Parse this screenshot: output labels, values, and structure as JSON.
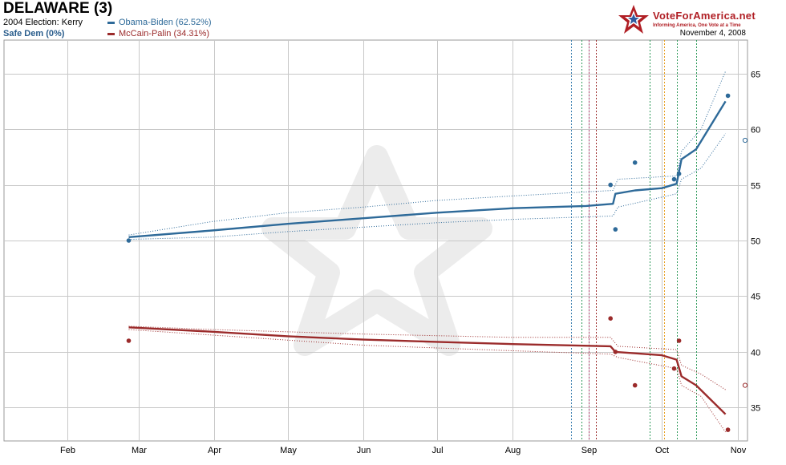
{
  "header": {
    "title": "DELAWARE (3)",
    "previous_election": "2004 Election: Kerry",
    "status": "Safe Dem (0%)",
    "date": "November 4, 2008"
  },
  "brand": {
    "name": "VoteForAmerica.net",
    "tagline": "Informing America, One Vote at a Time"
  },
  "chart_data": {
    "type": "line",
    "title": "",
    "xlabel": "",
    "ylabel": "",
    "x_ticks": [
      "Feb",
      "Mar",
      "Apr",
      "May",
      "Jun",
      "Jul",
      "Aug",
      "Sep",
      "Oct",
      "Nov"
    ],
    "y_ticks": [
      35,
      40,
      45,
      50,
      55,
      60,
      65
    ],
    "xlim": [
      "2008-01-06",
      "2008-11-05"
    ],
    "ylim": [
      32,
      68
    ],
    "grid": true,
    "legend": "top-left",
    "series": [
      {
        "name": "Obama-Biden (62.52%)",
        "color": "#2e6a99",
        "trend": [
          [
            "2008-02-26",
            50.3
          ],
          [
            "2008-03-31",
            50.9
          ],
          [
            "2008-05-01",
            51.5
          ],
          [
            "2008-06-01",
            52.0
          ],
          [
            "2008-07-01",
            52.5
          ],
          [
            "2008-08-01",
            52.9
          ],
          [
            "2008-08-31",
            53.1
          ],
          [
            "2008-09-11",
            53.3
          ],
          [
            "2008-09-12",
            54.2
          ],
          [
            "2008-09-20",
            54.5
          ],
          [
            "2008-10-01",
            54.7
          ],
          [
            "2008-10-07",
            55.1
          ],
          [
            "2008-10-09",
            57.3
          ],
          [
            "2008-10-15",
            58.2
          ],
          [
            "2008-10-27",
            62.5
          ]
        ],
        "band_upper": [
          [
            "2008-02-26",
            50.5
          ],
          [
            "2008-03-31",
            51.7
          ],
          [
            "2008-05-01",
            52.5
          ],
          [
            "2008-06-01",
            53.0
          ],
          [
            "2008-07-01",
            53.6
          ],
          [
            "2008-08-01",
            54.0
          ],
          [
            "2008-09-11",
            54.5
          ],
          [
            "2008-09-13",
            55.5
          ],
          [
            "2008-10-07",
            55.8
          ],
          [
            "2008-10-09",
            58.0
          ],
          [
            "2008-10-17",
            60.0
          ],
          [
            "2008-10-27",
            65.2
          ]
        ],
        "band_lower": [
          [
            "2008-02-26",
            50.1
          ],
          [
            "2008-03-31",
            50.3
          ],
          [
            "2008-05-01",
            50.8
          ],
          [
            "2008-06-01",
            51.2
          ],
          [
            "2008-07-01",
            51.6
          ],
          [
            "2008-08-01",
            51.9
          ],
          [
            "2008-09-11",
            52.2
          ],
          [
            "2008-09-13",
            53.0
          ],
          [
            "2008-10-07",
            54.2
          ],
          [
            "2008-10-09",
            55.5
          ],
          [
            "2008-10-17",
            56.5
          ],
          [
            "2008-10-27",
            59.6
          ]
        ],
        "polls": [
          [
            "2008-02-26",
            50
          ],
          [
            "2008-09-10",
            55
          ],
          [
            "2008-09-12",
            51
          ],
          [
            "2008-09-20",
            57
          ],
          [
            "2008-10-06",
            55.5
          ],
          [
            "2008-10-08",
            56
          ],
          [
            "2008-10-28",
            63
          ]
        ],
        "result": [
          "2008-11-04",
          59
        ]
      },
      {
        "name": "McCain-Palin (34.31%)",
        "color": "#9b2b2b",
        "trend": [
          [
            "2008-02-26",
            42.2
          ],
          [
            "2008-04-01",
            41.8
          ],
          [
            "2008-05-01",
            41.4
          ],
          [
            "2008-06-01",
            41.1
          ],
          [
            "2008-07-01",
            40.9
          ],
          [
            "2008-08-01",
            40.7
          ],
          [
            "2008-09-10",
            40.5
          ],
          [
            "2008-09-12",
            40.0
          ],
          [
            "2008-10-01",
            39.7
          ],
          [
            "2008-10-07",
            39.3
          ],
          [
            "2008-10-09",
            37.8
          ],
          [
            "2008-10-15",
            37.0
          ],
          [
            "2008-10-27",
            34.4
          ]
        ],
        "band_upper": [
          [
            "2008-02-26",
            42.3
          ],
          [
            "2008-04-01",
            42.0
          ],
          [
            "2008-06-01",
            41.6
          ],
          [
            "2008-08-01",
            41.3
          ],
          [
            "2008-09-10",
            41.3
          ],
          [
            "2008-09-13",
            40.5
          ],
          [
            "2008-10-07",
            40.2
          ],
          [
            "2008-10-09",
            38.8
          ],
          [
            "2008-10-17",
            38.0
          ],
          [
            "2008-10-27",
            36.6
          ]
        ],
        "band_lower": [
          [
            "2008-02-26",
            42.0
          ],
          [
            "2008-04-01",
            41.5
          ],
          [
            "2008-06-01",
            40.6
          ],
          [
            "2008-08-01",
            40.1
          ],
          [
            "2008-09-10",
            39.8
          ],
          [
            "2008-09-13",
            39.5
          ],
          [
            "2008-10-07",
            38.5
          ],
          [
            "2008-10-09",
            37.0
          ],
          [
            "2008-10-17",
            36.0
          ],
          [
            "2008-10-27",
            32.8
          ]
        ],
        "polls": [
          [
            "2008-02-26",
            41
          ],
          [
            "2008-09-10",
            43
          ],
          [
            "2008-09-12",
            40
          ],
          [
            "2008-09-20",
            37
          ],
          [
            "2008-10-06",
            38.5
          ],
          [
            "2008-10-08",
            41
          ],
          [
            "2008-10-28",
            33
          ]
        ],
        "result": [
          "2008-11-04",
          37
        ]
      }
    ],
    "event_lines": [
      {
        "x": "2008-08-25",
        "color": "#3b7fb0"
      },
      {
        "x": "2008-08-29",
        "color": "#2e9a5a"
      },
      {
        "x": "2008-09-01",
        "color": "#b04070"
      },
      {
        "x": "2008-09-04",
        "color": "#9b2b2b"
      },
      {
        "x": "2008-09-26",
        "color": "#2e9a5a"
      },
      {
        "x": "2008-10-02",
        "color": "#e8a020"
      },
      {
        "x": "2008-10-07",
        "color": "#2e9a5a"
      },
      {
        "x": "2008-10-15",
        "color": "#2e9a5a"
      }
    ]
  }
}
